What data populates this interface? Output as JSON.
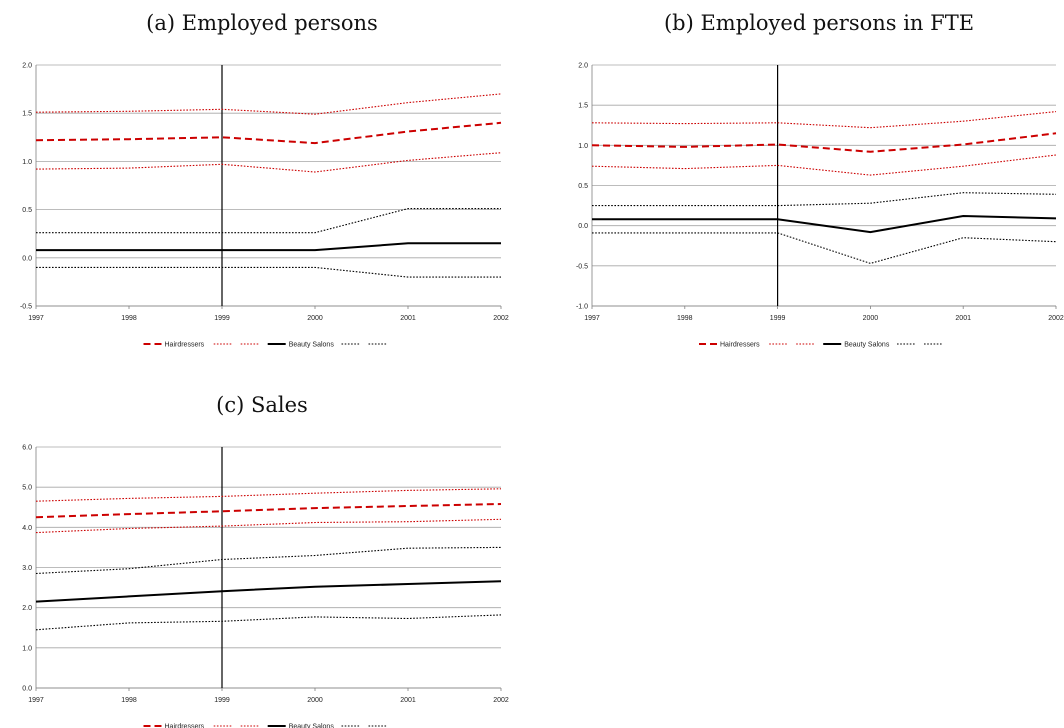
{
  "colors": {
    "hairdressers": "#cc0000",
    "beauty_salons": "#000000",
    "grid": "#a6a6a6",
    "axis": "#808080"
  },
  "chart_data": [
    {
      "type": "line",
      "title": "(a) Employed persons",
      "x": [
        "1997",
        "1998",
        "1999",
        "2000",
        "2001",
        "2002"
      ],
      "ylim": [
        -0.5,
        2.0
      ],
      "yticks": [
        "-0.5",
        "0.0",
        "0.5",
        "1.0",
        "1.5",
        "2.0"
      ],
      "grid": true,
      "vline_x": "1999",
      "legend_position": "bottom",
      "series": [
        {
          "name": "Hairdressers",
          "style": "dashed",
          "color": "#cc0000",
          "values": [
            1.22,
            1.23,
            1.25,
            1.19,
            1.31,
            1.4
          ]
        },
        {
          "name": "",
          "style": "dotted",
          "color": "#cc0000",
          "values": [
            1.51,
            1.52,
            1.54,
            1.49,
            1.61,
            1.7
          ]
        },
        {
          "name": "",
          "style": "dotted",
          "color": "#cc0000",
          "values": [
            0.92,
            0.93,
            0.97,
            0.89,
            1.01,
            1.09
          ]
        },
        {
          "name": "Beauty Salons",
          "style": "solid",
          "color": "#000000",
          "values": [
            0.08,
            0.08,
            0.08,
            0.08,
            0.15,
            0.15
          ]
        },
        {
          "name": "",
          "style": "dotted",
          "color": "#000000",
          "values": [
            0.26,
            0.26,
            0.26,
            0.26,
            0.51,
            0.51
          ]
        },
        {
          "name": "",
          "style": "dotted",
          "color": "#000000",
          "values": [
            -0.1,
            -0.1,
            -0.1,
            -0.1,
            -0.2,
            -0.2
          ]
        }
      ]
    },
    {
      "type": "line",
      "title": "(b) Employed persons in FTE",
      "x": [
        "1997",
        "1998",
        "1999",
        "2000",
        "2001",
        "2002"
      ],
      "ylim": [
        -1.0,
        2.0
      ],
      "yticks": [
        "-1.0",
        "-0.5",
        "0.0",
        "0.5",
        "1.0",
        "1.5",
        "2.0"
      ],
      "grid": true,
      "vline_x": "1999",
      "legend_position": "bottom",
      "series": [
        {
          "name": "Hairdressers",
          "style": "dashed",
          "color": "#cc0000",
          "values": [
            1.0,
            0.98,
            1.01,
            0.92,
            1.01,
            1.15
          ]
        },
        {
          "name": "",
          "style": "dotted",
          "color": "#cc0000",
          "values": [
            1.28,
            1.27,
            1.28,
            1.22,
            1.3,
            1.42
          ]
        },
        {
          "name": "",
          "style": "dotted",
          "color": "#cc0000",
          "values": [
            0.74,
            0.71,
            0.75,
            0.63,
            0.74,
            0.88
          ]
        },
        {
          "name": "Beauty Salons",
          "style": "solid",
          "color": "#000000",
          "values": [
            0.08,
            0.08,
            0.08,
            -0.08,
            0.12,
            0.09
          ]
        },
        {
          "name": "",
          "style": "dotted",
          "color": "#000000",
          "values": [
            0.25,
            0.25,
            0.25,
            0.28,
            0.41,
            0.39
          ]
        },
        {
          "name": "",
          "style": "dotted",
          "color": "#000000",
          "values": [
            -0.09,
            -0.09,
            -0.09,
            -0.47,
            -0.15,
            -0.2
          ]
        }
      ]
    },
    {
      "type": "line",
      "title": "(c) Sales",
      "x": [
        "1997",
        "1998",
        "1999",
        "2000",
        "2001",
        "2002"
      ],
      "ylim": [
        0.0,
        6.0
      ],
      "yticks": [
        "0.0",
        "1.0",
        "2.0",
        "3.0",
        "4.0",
        "5.0",
        "6.0"
      ],
      "grid": true,
      "vline_x": "1999",
      "legend_position": "bottom",
      "series": [
        {
          "name": "Hairdressers",
          "style": "dashed",
          "color": "#cc0000",
          "values": [
            4.25,
            4.33,
            4.4,
            4.48,
            4.53,
            4.58
          ]
        },
        {
          "name": "",
          "style": "dotted",
          "color": "#cc0000",
          "values": [
            4.65,
            4.72,
            4.77,
            4.85,
            4.92,
            4.96
          ]
        },
        {
          "name": "",
          "style": "dotted",
          "color": "#cc0000",
          "values": [
            3.87,
            3.97,
            4.03,
            4.12,
            4.14,
            4.2
          ]
        },
        {
          "name": "Beauty Salons",
          "style": "solid",
          "color": "#000000",
          "values": [
            2.15,
            2.28,
            2.41,
            2.52,
            2.59,
            2.66
          ]
        },
        {
          "name": "",
          "style": "dotted",
          "color": "#000000",
          "values": [
            2.85,
            2.97,
            3.2,
            3.3,
            3.48,
            3.5
          ]
        },
        {
          "name": "",
          "style": "dotted",
          "color": "#000000",
          "values": [
            1.45,
            1.62,
            1.66,
            1.77,
            1.73,
            1.82
          ]
        }
      ]
    }
  ]
}
